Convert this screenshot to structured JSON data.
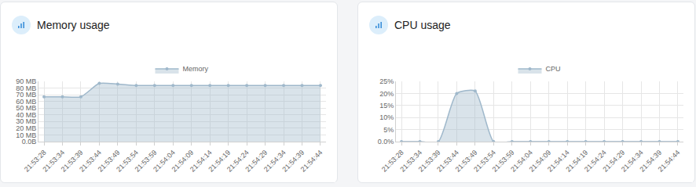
{
  "chart_data": [
    {
      "type": "area",
      "title": "Memory usage",
      "categories": [
        "21:53:28",
        "21:53:34",
        "21:53:39",
        "21:53:44",
        "21:53:49",
        "21:53:54",
        "21:53:59",
        "21:54:04",
        "21:54:09",
        "21:54:14",
        "21:54:19",
        "21:54:24",
        "21:54:29",
        "21:54:34",
        "21:54:39",
        "21:54:44"
      ],
      "series": [
        {
          "name": "Memory",
          "color": "#9fb8cb",
          "values": [
            67,
            67,
            67,
            87,
            86,
            84,
            84,
            84,
            84,
            84,
            84,
            84,
            84,
            84,
            84,
            84
          ]
        }
      ],
      "ylim": [
        0,
        90
      ],
      "yticks": [
        {
          "value": 0,
          "label": "0.0B"
        },
        {
          "value": 10,
          "label": "10 MB"
        },
        {
          "value": 20,
          "label": "20 MB"
        },
        {
          "value": 30,
          "label": "30 MB"
        },
        {
          "value": 40,
          "label": "40 MB"
        },
        {
          "value": 50,
          "label": "50 MB"
        },
        {
          "value": 60,
          "label": "60 MB"
        },
        {
          "value": 70,
          "label": "70 MB"
        },
        {
          "value": 80,
          "label": "80 MB"
        },
        {
          "value": 90,
          "label": "90 MB"
        }
      ],
      "grid": true,
      "legend": "top"
    },
    {
      "type": "area",
      "title": "CPU usage",
      "categories": [
        "21:53:28",
        "21:53:34",
        "21:53:39",
        "21:53:44",
        "21:53:49",
        "21:53:54",
        "21:53:59",
        "21:54:04",
        "21:54:09",
        "21:54:14",
        "21:54:19",
        "21:54:24",
        "21:54:29",
        "21:54:34",
        "21:54:39",
        "21:54:44"
      ],
      "series": [
        {
          "name": "CPU",
          "color": "#9fb8cb",
          "values": [
            0,
            0,
            0,
            20,
            21,
            0,
            0,
            0,
            0,
            0,
            0,
            0,
            0,
            0,
            0,
            0
          ]
        }
      ],
      "ylim": [
        0,
        25
      ],
      "yticks": [
        {
          "value": 0,
          "label": "0.0%"
        },
        {
          "value": 5,
          "label": "5%"
        },
        {
          "value": 10,
          "label": "10%"
        },
        {
          "value": 15,
          "label": "15%"
        },
        {
          "value": 20,
          "label": "20%"
        },
        {
          "value": 25,
          "label": "25%"
        }
      ],
      "grid": true,
      "legend": "top"
    }
  ]
}
